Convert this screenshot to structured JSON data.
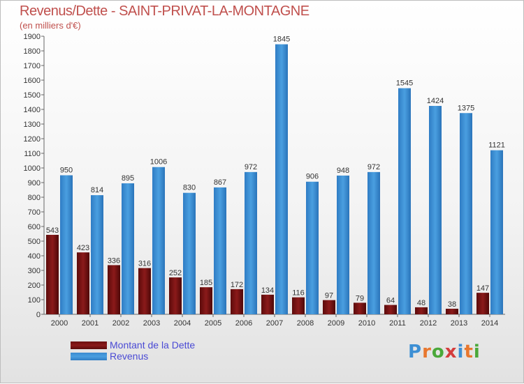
{
  "header": {
    "title": "Revenus/Dette - SAINT-PRIVAT-LA-MONTAGNE",
    "subtitle": "(en milliers d'€)"
  },
  "colors": {
    "debt": "#8b1a1a",
    "revenue": "#4a9fe0",
    "axis_text": "#333333",
    "title": "#c0504d",
    "legend_text": "#4a4ad4"
  },
  "legend": {
    "debt_label": "Montant de la Dette",
    "revenue_label": "Revenus"
  },
  "logo": {
    "text": "Proxiti",
    "letter_colors": [
      "#3d8fd4",
      "#e8772e",
      "#4aa83a",
      "#d43d3d",
      "#3d8fd4",
      "#e8772e",
      "#4aa83a"
    ]
  },
  "chart_data": {
    "type": "bar",
    "categories": [
      "2000",
      "2001",
      "2002",
      "2003",
      "2004",
      "2005",
      "2006",
      "2007",
      "2008",
      "2009",
      "2010",
      "2011",
      "2012",
      "2013",
      "2014"
    ],
    "series": [
      {
        "name": "Montant de la Dette",
        "values": [
          543,
          423,
          336,
          316,
          252,
          185,
          172,
          134,
          116,
          97,
          79,
          64,
          48,
          38,
          147
        ]
      },
      {
        "name": "Revenus",
        "values": [
          950,
          814,
          895,
          1006,
          830,
          867,
          972,
          1845,
          906,
          948,
          972,
          1545,
          1424,
          1375,
          1121
        ]
      }
    ],
    "title": "Revenus/Dette - SAINT-PRIVAT-LA-MONTAGNE",
    "ylabel": "(en milliers d'€)",
    "xlabel": "",
    "ylim": [
      0,
      1900
    ],
    "ytick_step": 100,
    "grid": false,
    "legend_position": "bottom-left"
  }
}
